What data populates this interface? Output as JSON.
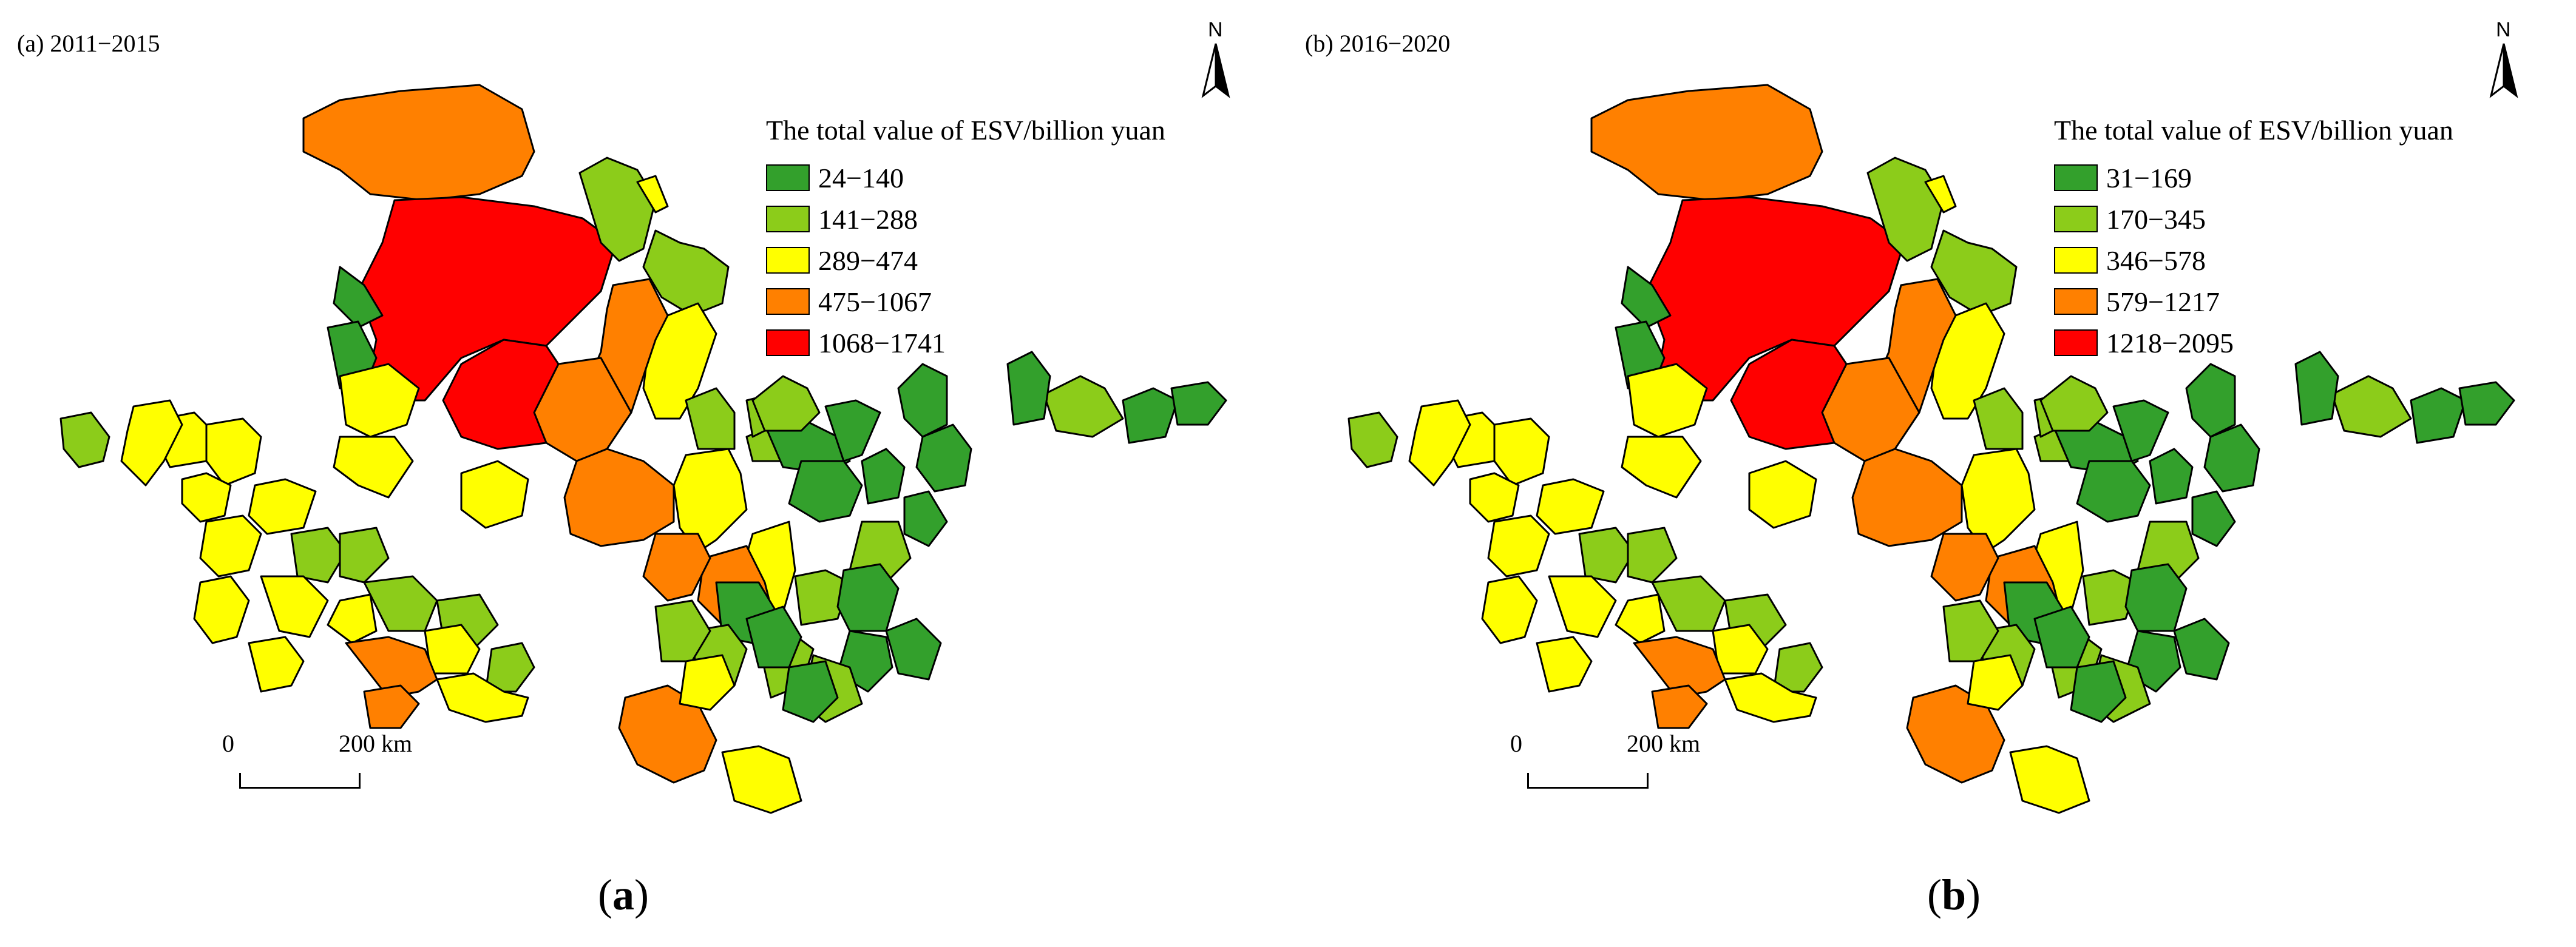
{
  "figure": {
    "panels": [
      {
        "id": "a",
        "title": "(a) 2011−2015",
        "north": "N",
        "legend": {
          "title": "The total value of ESV/billion yuan",
          "classes": [
            {
              "label": "24−140",
              "color": "#33A02C"
            },
            {
              "label": "141−288",
              "color": "#8CCC1A"
            },
            {
              "label": "289−474",
              "color": "#FFFF00"
            },
            {
              "label": "475−1067",
              "color": "#FF8000"
            },
            {
              "label": "1068−1741",
              "color": "#FF0000"
            }
          ]
        },
        "scale": {
          "zero": "0",
          "distance": "200 km"
        },
        "caption": {
          "open": "(",
          "letter": "a",
          "close": ")"
        }
      },
      {
        "id": "b",
        "title": "(b) 2016−2020",
        "north": "N",
        "legend": {
          "title": "The total value of ESV/billion yuan",
          "classes": [
            {
              "label": "31−169",
              "color": "#33A02C"
            },
            {
              "label": "170−345",
              "color": "#8CCC1A"
            },
            {
              "label": "346−578",
              "color": "#FFFF00"
            },
            {
              "label": "579−1217",
              "color": "#FF8000"
            },
            {
              "label": "1218−2095",
              "color": "#FF0000"
            }
          ]
        },
        "scale": {
          "zero": "0",
          "distance": "200 km"
        },
        "caption": {
          "open": "(",
          "letter": "b",
          "close": ")"
        }
      }
    ],
    "map_regions": {
      "note_classes": "class index 0-4 maps to legend classes per panel",
      "a": [
        3,
        4,
        1,
        0,
        0,
        2,
        2,
        1,
        2,
        3,
        3,
        4,
        3,
        2,
        1,
        1,
        2,
        3,
        0,
        0,
        0,
        1,
        0,
        1,
        2,
        2,
        2,
        0,
        0,
        0,
        1,
        3,
        0,
        1,
        0,
        0,
        0,
        1,
        1,
        3,
        2,
        1,
        0,
        0,
        0,
        2
      ],
      "b": [
        3,
        4,
        1,
        0,
        0,
        2,
        2,
        1,
        2,
        3,
        3,
        4,
        3,
        2,
        1,
        1,
        2,
        3,
        0,
        0,
        0,
        1,
        0,
        1,
        2,
        2,
        2,
        0,
        0,
        0,
        1,
        3,
        0,
        1,
        0,
        0,
        0,
        1,
        1,
        3,
        2,
        1,
        0,
        0,
        0,
        2
      ]
    }
  }
}
